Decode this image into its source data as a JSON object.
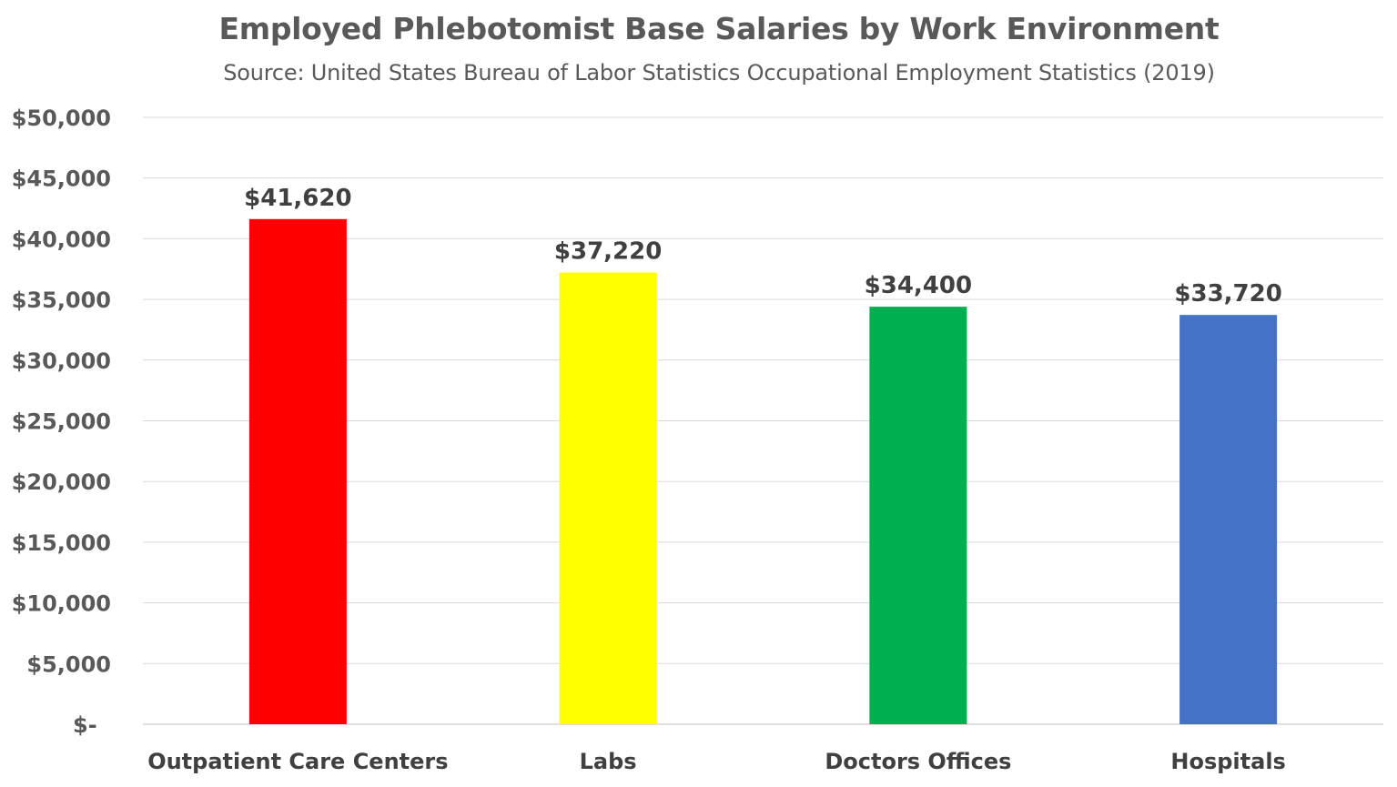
{
  "chart_data": {
    "type": "bar",
    "title": "Employed Phlebotomist Base Salaries by Work Environment",
    "subtitle": "Source: United States Bureau of Labor Statistics Occupational Employment Statistics (2019)",
    "categories": [
      "Outpatient Care Centers",
      "Labs",
      "Doctors Offices",
      "Hospitals"
    ],
    "values": [
      41620,
      37220,
      34400,
      33720
    ],
    "data_labels": [
      "$41,620",
      "$37,220",
      "$34,400",
      "$33,720"
    ],
    "colors": [
      "#FF0000",
      "#FFFF00",
      "#00B050",
      "#4472C4"
    ],
    "ylim": [
      0,
      50000
    ],
    "yticks": [
      0,
      5000,
      10000,
      15000,
      20000,
      25000,
      30000,
      35000,
      40000,
      45000,
      50000
    ],
    "ytick_labels": [
      "$-",
      "$5,000",
      "$10,000",
      "$15,000",
      "$20,000",
      "$25,000",
      "$30,000",
      "$35,000",
      "$40,000",
      "$45,000",
      "$50,000"
    ],
    "grid": true,
    "legend": false,
    "xlabel": "",
    "ylabel": ""
  }
}
